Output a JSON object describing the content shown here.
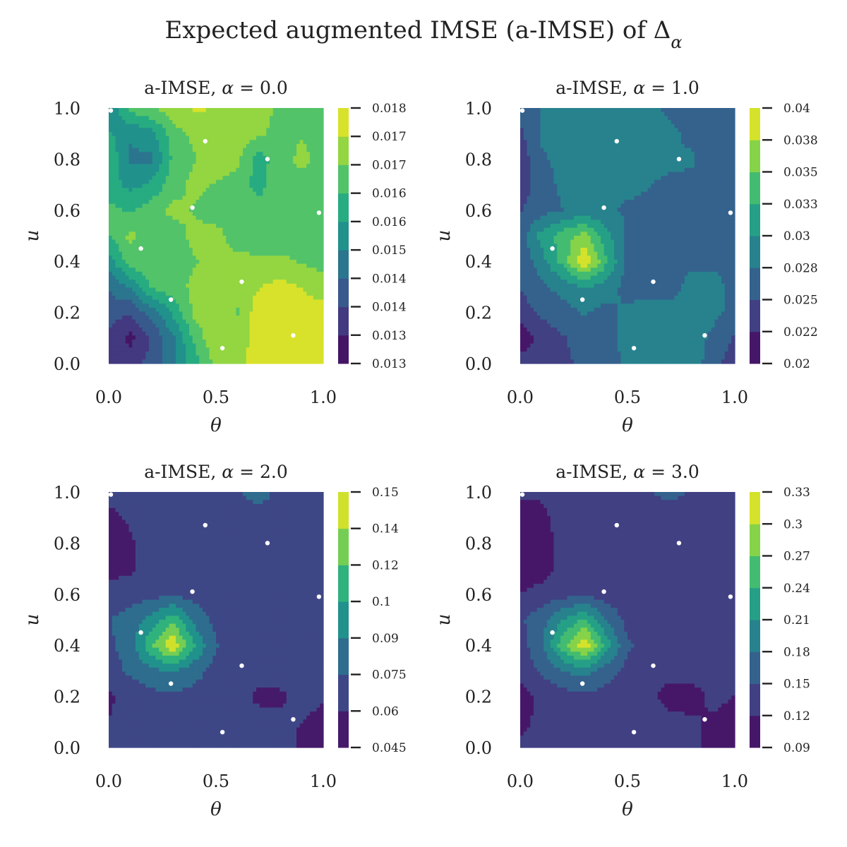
{
  "figure": {
    "title": "Expected augmented IMSE (a-IMSE) of Δ",
    "title_subscript": "α"
  },
  "colors": {
    "viridis": [
      "#440154",
      "#472d7b",
      "#3b528b",
      "#2c728e",
      "#21918c",
      "#28ae80",
      "#5ec962",
      "#addc30",
      "#fde725"
    ],
    "design_points": "#ffffff"
  },
  "chart_data": [
    {
      "type": "heatmap",
      "title_prefix": "a-IMSE, ",
      "title_symbol": "α",
      "title_suffix": " = 0.0",
      "xlabel": "θ",
      "ylabel": "u",
      "xlim": [
        0.0,
        1.0
      ],
      "ylim": [
        0.0,
        1.0
      ],
      "x_ticks": [
        "0.0",
        "0.5",
        "1.0"
      ],
      "y_ticks": [
        "0.0",
        "0.2",
        "0.4",
        "0.6",
        "0.8",
        "1.0"
      ],
      "colorbar_ticks": [
        "0.013",
        "0.013",
        "0.014",
        "0.014",
        "0.015",
        "0.016",
        "0.016",
        "0.017",
        "0.017",
        "0.018"
      ],
      "vmin": 0.0128,
      "vmax": 0.018,
      "grid": [
        [
          0.015,
          0.0165,
          0.0168,
          0.0172,
          0.0175,
          0.0174,
          0.0172,
          0.017,
          0.0168,
          0.0165,
          0.0163
        ],
        [
          0.0158,
          0.0152,
          0.0155,
          0.0166,
          0.017,
          0.0172,
          0.0172,
          0.017,
          0.0166,
          0.0168,
          0.0166
        ],
        [
          0.0162,
          0.015,
          0.015,
          0.0164,
          0.0168,
          0.0172,
          0.017,
          0.016,
          0.0166,
          0.017,
          0.0166
        ],
        [
          0.016,
          0.0155,
          0.0158,
          0.0166,
          0.017,
          0.0168,
          0.0166,
          0.016,
          0.0168,
          0.0166,
          0.0166
        ],
        [
          0.0164,
          0.0162,
          0.0166,
          0.017,
          0.0168,
          0.0166,
          0.0168,
          0.0166,
          0.0164,
          0.0166,
          0.0168
        ],
        [
          0.0162,
          0.017,
          0.0164,
          0.0166,
          0.017,
          0.017,
          0.0166,
          0.0164,
          0.0164,
          0.0166,
          0.0166
        ],
        [
          0.0154,
          0.0166,
          0.0166,
          0.0164,
          0.0168,
          0.017,
          0.017,
          0.017,
          0.017,
          0.0168,
          0.0166
        ],
        [
          0.0146,
          0.0152,
          0.0164,
          0.0166,
          0.017,
          0.0172,
          0.017,
          0.0174,
          0.0176,
          0.0174,
          0.0172
        ],
        [
          0.0142,
          0.014,
          0.0148,
          0.0158,
          0.017,
          0.0172,
          0.0168,
          0.0178,
          0.0178,
          0.0176,
          0.0176
        ],
        [
          0.0138,
          0.0132,
          0.014,
          0.015,
          0.0164,
          0.0174,
          0.017,
          0.0178,
          0.018,
          0.0178,
          0.0178
        ],
        [
          0.014,
          0.0136,
          0.0142,
          0.015,
          0.016,
          0.017,
          0.0172,
          0.0178,
          0.0178,
          0.0178,
          0.0178
        ]
      ],
      "points": [
        [
          0.01,
          0.99
        ],
        [
          0.45,
          0.87
        ],
        [
          0.74,
          0.8
        ],
        [
          0.39,
          0.61
        ],
        [
          0.98,
          0.59
        ],
        [
          0.15,
          0.45
        ],
        [
          0.62,
          0.32
        ],
        [
          0.29,
          0.25
        ],
        [
          0.86,
          0.11
        ],
        [
          0.53,
          0.06
        ]
      ]
    },
    {
      "type": "heatmap",
      "title_prefix": "a-IMSE, ",
      "title_symbol": "α",
      "title_suffix": " = 1.0",
      "xlabel": "θ",
      "ylabel": "u",
      "xlim": [
        0.0,
        1.0
      ],
      "ylim": [
        0.0,
        1.0
      ],
      "x_ticks": [
        "0.0",
        "0.5",
        "1.0"
      ],
      "y_ticks": [
        "0.0",
        "0.2",
        "0.4",
        "0.6",
        "0.8",
        "1.0"
      ],
      "colorbar_ticks": [
        "0.02",
        "0.022",
        "0.025",
        "0.028",
        "0.03",
        "0.033",
        "0.035",
        "0.038",
        "0.04"
      ],
      "vmin": 0.02,
      "vmax": 0.04,
      "grid": [
        [
          0.0255,
          0.0275,
          0.028,
          0.0282,
          0.0285,
          0.0282,
          0.028,
          0.027,
          0.0262,
          0.0262,
          0.0262
        ],
        [
          0.0245,
          0.0278,
          0.0282,
          0.028,
          0.0282,
          0.0282,
          0.0282,
          0.028,
          0.0268,
          0.0262,
          0.0262
        ],
        [
          0.0235,
          0.0272,
          0.0282,
          0.0282,
          0.028,
          0.0282,
          0.0282,
          0.028,
          0.0278,
          0.0265,
          0.0262
        ],
        [
          0.0235,
          0.0265,
          0.028,
          0.0282,
          0.0282,
          0.028,
          0.0276,
          0.027,
          0.027,
          0.0268,
          0.027
        ],
        [
          0.0248,
          0.0265,
          0.0275,
          0.0282,
          0.0278,
          0.0272,
          0.027,
          0.0268,
          0.0266,
          0.027,
          0.0272
        ],
        [
          0.0262,
          0.031,
          0.0338,
          0.036,
          0.0308,
          0.0272,
          0.0262,
          0.0265,
          0.0265,
          0.0268,
          0.027
        ],
        [
          0.0255,
          0.029,
          0.0335,
          0.04,
          0.033,
          0.0265,
          0.026,
          0.0262,
          0.027,
          0.0272,
          0.027
        ],
        [
          0.025,
          0.027,
          0.0285,
          0.03,
          0.029,
          0.0265,
          0.0262,
          0.0265,
          0.0285,
          0.028,
          0.027
        ],
        [
          0.0238,
          0.0255,
          0.0265,
          0.0278,
          0.0265,
          0.0282,
          0.0285,
          0.0285,
          0.029,
          0.0282,
          0.0268
        ],
        [
          0.0208,
          0.0235,
          0.0248,
          0.0262,
          0.0265,
          0.0285,
          0.0288,
          0.029,
          0.029,
          0.0268,
          0.0248
        ],
        [
          0.0238,
          0.0235,
          0.0245,
          0.0255,
          0.0262,
          0.028,
          0.0285,
          0.029,
          0.029,
          0.026,
          0.0235
        ]
      ],
      "points": [
        [
          0.01,
          0.99
        ],
        [
          0.45,
          0.87
        ],
        [
          0.74,
          0.8
        ],
        [
          0.39,
          0.61
        ],
        [
          0.98,
          0.59
        ],
        [
          0.15,
          0.45
        ],
        [
          0.62,
          0.32
        ],
        [
          0.29,
          0.25
        ],
        [
          0.86,
          0.11
        ],
        [
          0.53,
          0.06
        ]
      ]
    },
    {
      "type": "heatmap",
      "title_prefix": "a-IMSE, ",
      "title_symbol": "α",
      "title_suffix": " = 2.0",
      "xlabel": "θ",
      "ylabel": "u",
      "xlim": [
        0.0,
        1.0
      ],
      "ylim": [
        0.0,
        1.0
      ],
      "x_ticks": [
        "0.0",
        "0.5",
        "1.0"
      ],
      "y_ticks": [
        "0.0",
        "0.2",
        "0.4",
        "0.6",
        "0.8",
        "1.0"
      ],
      "colorbar_ticks": [
        "0.045",
        "0.06",
        "0.075",
        "0.09",
        "0.1",
        "0.12",
        "0.14",
        "0.15"
      ],
      "vmin": 0.045,
      "vmax": 0.15,
      "grid": [
        [
          0.066,
          0.065,
          0.068,
          0.07,
          0.07,
          0.072,
          0.074,
          0.08,
          0.072,
          0.07,
          0.068
        ],
        [
          0.056,
          0.062,
          0.068,
          0.07,
          0.07,
          0.07,
          0.07,
          0.07,
          0.07,
          0.07,
          0.068
        ],
        [
          0.055,
          0.058,
          0.068,
          0.07,
          0.07,
          0.07,
          0.07,
          0.07,
          0.07,
          0.07,
          0.068
        ],
        [
          0.056,
          0.057,
          0.068,
          0.07,
          0.07,
          0.07,
          0.07,
          0.07,
          0.07,
          0.07,
          0.068
        ],
        [
          0.064,
          0.068,
          0.07,
          0.072,
          0.07,
          0.07,
          0.07,
          0.07,
          0.07,
          0.07,
          0.068
        ],
        [
          0.074,
          0.082,
          0.096,
          0.115,
          0.085,
          0.07,
          0.07,
          0.07,
          0.07,
          0.07,
          0.068
        ],
        [
          0.072,
          0.082,
          0.118,
          0.148,
          0.105,
          0.076,
          0.07,
          0.07,
          0.07,
          0.07,
          0.068
        ],
        [
          0.068,
          0.078,
          0.086,
          0.092,
          0.08,
          0.07,
          0.07,
          0.07,
          0.07,
          0.07,
          0.068
        ],
        [
          0.058,
          0.065,
          0.07,
          0.072,
          0.07,
          0.07,
          0.07,
          0.054,
          0.056,
          0.068,
          0.062
        ],
        [
          0.06,
          0.066,
          0.07,
          0.07,
          0.07,
          0.07,
          0.07,
          0.07,
          0.064,
          0.06,
          0.054
        ],
        [
          0.065,
          0.068,
          0.07,
          0.07,
          0.07,
          0.07,
          0.07,
          0.07,
          0.068,
          0.056,
          0.05
        ]
      ],
      "points": [
        [
          0.01,
          0.99
        ],
        [
          0.45,
          0.87
        ],
        [
          0.74,
          0.8
        ],
        [
          0.39,
          0.61
        ],
        [
          0.98,
          0.59
        ],
        [
          0.15,
          0.45
        ],
        [
          0.62,
          0.32
        ],
        [
          0.29,
          0.25
        ],
        [
          0.86,
          0.11
        ],
        [
          0.53,
          0.06
        ]
      ]
    },
    {
      "type": "heatmap",
      "title_prefix": "a-IMSE, ",
      "title_symbol": "α",
      "title_suffix": " = 3.0",
      "xlabel": "θ",
      "ylabel": "u",
      "xlim": [
        0.0,
        1.0
      ],
      "ylim": [
        0.0,
        1.0
      ],
      "x_ticks": [
        "0.0",
        "0.5",
        "1.0"
      ],
      "y_ticks": [
        "0.0",
        "0.2",
        "0.4",
        "0.6",
        "0.8",
        "1.0"
      ],
      "colorbar_ticks": [
        "0.09",
        "0.12",
        "0.15",
        "0.18",
        "0.21",
        "0.24",
        "0.27",
        "0.3",
        "0.33"
      ],
      "vmin": 0.09,
      "vmax": 0.33,
      "grid": [
        [
          0.125,
          0.123,
          0.13,
          0.135,
          0.138,
          0.142,
          0.148,
          0.16,
          0.145,
          0.138,
          0.135
        ],
        [
          0.105,
          0.115,
          0.13,
          0.135,
          0.135,
          0.135,
          0.135,
          0.135,
          0.135,
          0.135,
          0.132
        ],
        [
          0.102,
          0.108,
          0.13,
          0.135,
          0.135,
          0.135,
          0.135,
          0.135,
          0.135,
          0.135,
          0.132
        ],
        [
          0.105,
          0.108,
          0.13,
          0.135,
          0.135,
          0.135,
          0.135,
          0.135,
          0.135,
          0.135,
          0.132
        ],
        [
          0.12,
          0.13,
          0.138,
          0.142,
          0.138,
          0.135,
          0.135,
          0.135,
          0.135,
          0.135,
          0.132
        ],
        [
          0.145,
          0.17,
          0.21,
          0.245,
          0.175,
          0.14,
          0.135,
          0.135,
          0.135,
          0.135,
          0.132
        ],
        [
          0.14,
          0.17,
          0.26,
          0.325,
          0.23,
          0.155,
          0.135,
          0.135,
          0.135,
          0.135,
          0.132
        ],
        [
          0.13,
          0.155,
          0.18,
          0.195,
          0.165,
          0.14,
          0.135,
          0.135,
          0.135,
          0.135,
          0.132
        ],
        [
          0.108,
          0.125,
          0.138,
          0.142,
          0.138,
          0.135,
          0.135,
          0.1,
          0.105,
          0.13,
          0.12
        ],
        [
          0.112,
          0.128,
          0.135,
          0.135,
          0.135,
          0.135,
          0.135,
          0.135,
          0.125,
          0.115,
          0.1
        ],
        [
          0.125,
          0.132,
          0.135,
          0.135,
          0.135,
          0.135,
          0.135,
          0.135,
          0.13,
          0.105,
          0.095
        ]
      ],
      "points": [
        [
          0.01,
          0.99
        ],
        [
          0.45,
          0.87
        ],
        [
          0.74,
          0.8
        ],
        [
          0.39,
          0.61
        ],
        [
          0.98,
          0.59
        ],
        [
          0.15,
          0.45
        ],
        [
          0.62,
          0.32
        ],
        [
          0.29,
          0.25
        ],
        [
          0.86,
          0.11
        ],
        [
          0.53,
          0.06
        ]
      ]
    }
  ]
}
